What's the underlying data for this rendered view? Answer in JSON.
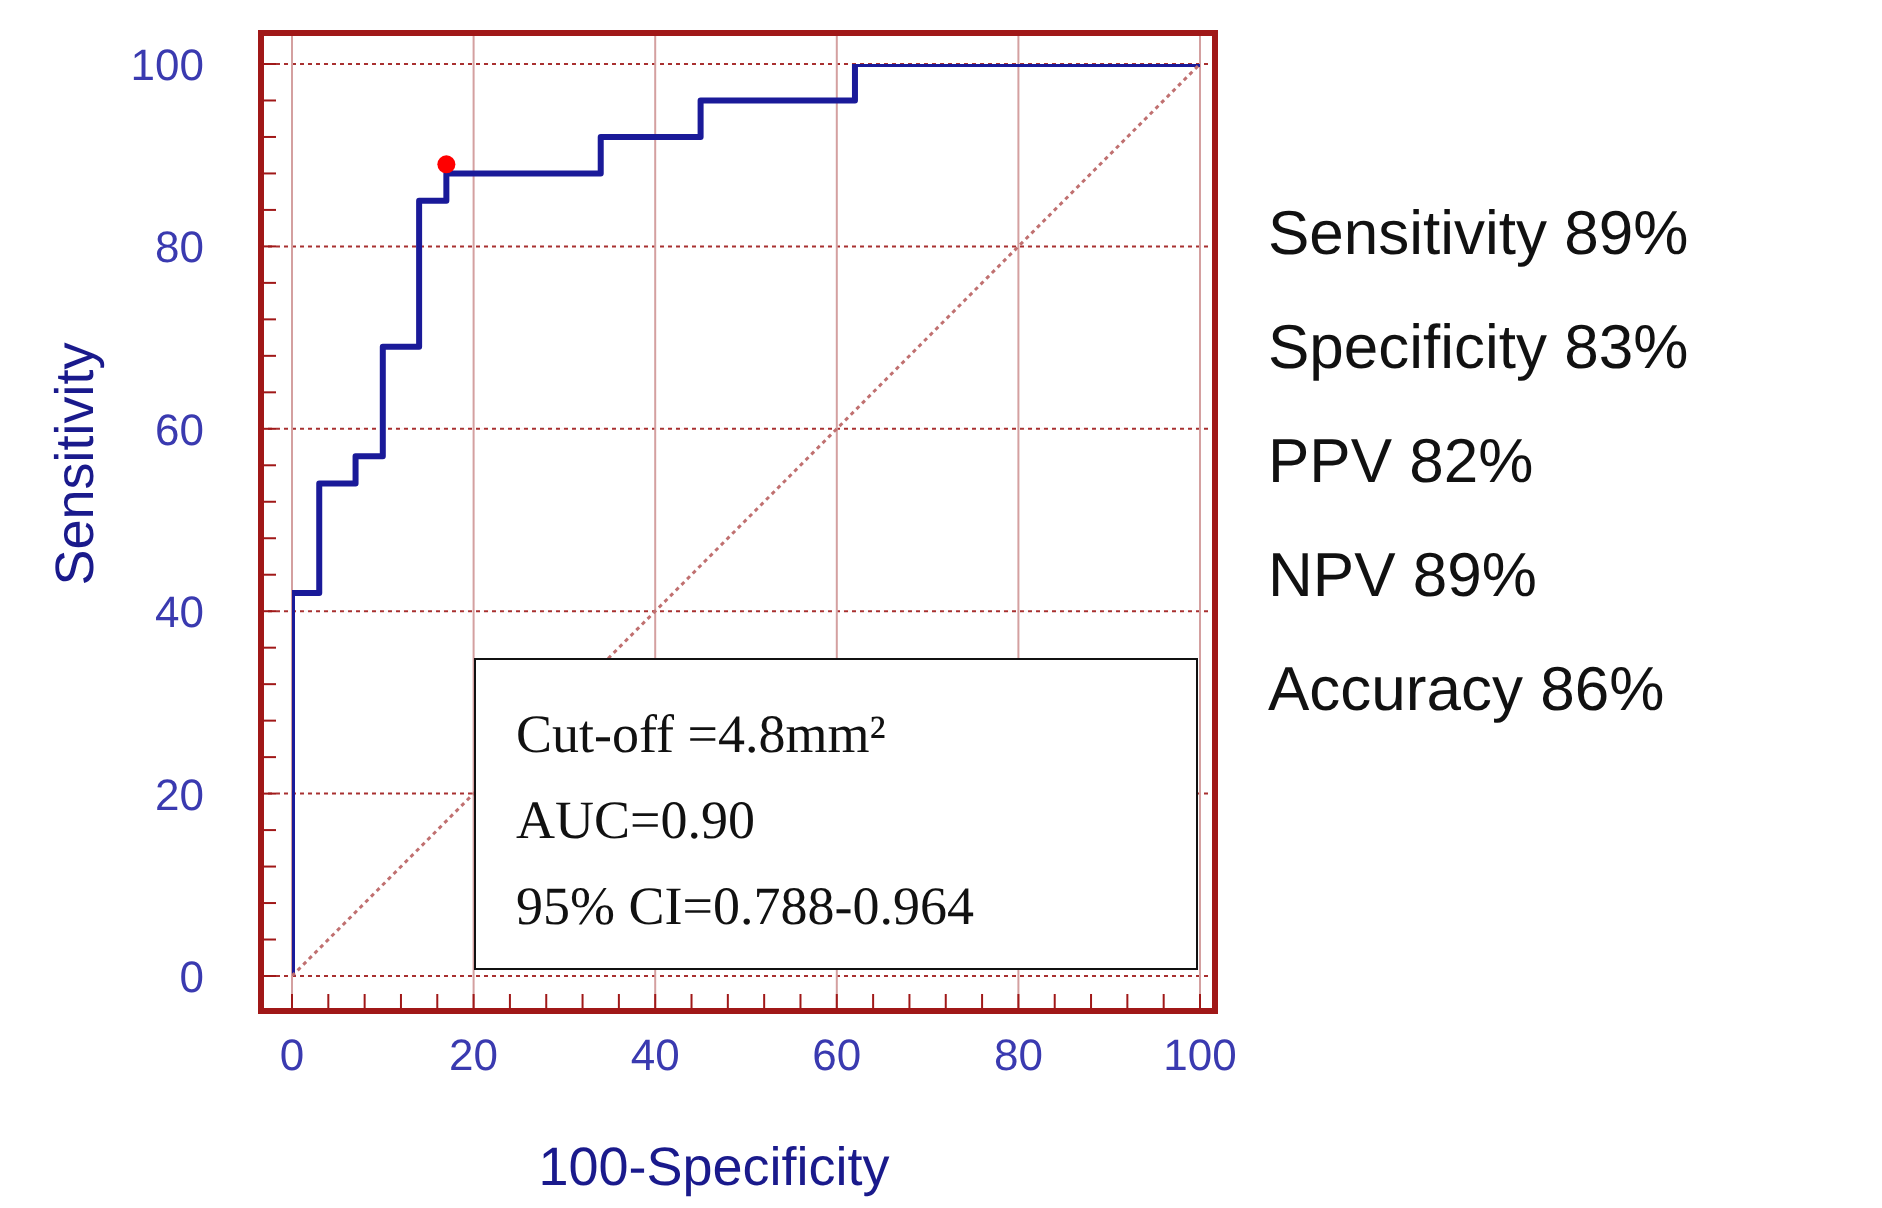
{
  "chart_data": {
    "type": "step",
    "xlabel": "100-Specificity",
    "ylabel": "Sensitivity",
    "series": [
      {
        "color": "#1a1a99",
        "x": [
          0,
          3,
          7,
          10,
          14,
          17,
          34,
          45,
          62,
          100
        ],
        "values": [
          0,
          42,
          54,
          57,
          69,
          85,
          88,
          92,
          96,
          100
        ]
      },
      {
        "type": "line",
        "color": "#c07070",
        "line_style": "dotted",
        "x": [
          0,
          100
        ],
        "values": [
          0,
          100
        ]
      },
      {
        "type": "scatter",
        "color": "#ff0000",
        "marker": "circle",
        "x": [
          17
        ],
        "values": [
          89
        ]
      }
    ],
    "xlim": [
      0,
      100
    ],
    "ylim": [
      0,
      100
    ],
    "xticks": [
      0,
      {
        "value": 4,
        "label": null
      },
      {
        "value": 8,
        "label": null
      },
      {
        "value": 12,
        "label": null
      },
      {
        "value": 16,
        "label": null
      },
      20,
      {
        "value": 24,
        "label": null
      },
      {
        "value": 28,
        "label": null
      },
      {
        "value": 32,
        "label": null
      },
      {
        "value": 36,
        "label": null
      },
      40,
      {
        "value": 44,
        "label": null
      },
      {
        "value": 48,
        "label": null
      },
      {
        "value": 52,
        "label": null
      },
      {
        "value": 56,
        "label": null
      },
      60,
      {
        "value": 64,
        "label": null
      },
      {
        "value": 68,
        "label": null
      },
      {
        "value": 72,
        "label": null
      },
      {
        "value": 76,
        "label": null
      },
      80,
      {
        "value": 84,
        "label": null
      },
      {
        "value": 88,
        "label": null
      },
      {
        "value": 92,
        "label": null
      },
      {
        "value": 96,
        "label": null
      },
      100
    ],
    "yticks": [
      0,
      {
        "value": 4,
        "label": null
      },
      {
        "value": 8,
        "label": null
      },
      {
        "value": 12,
        "label": null
      },
      {
        "value": 16,
        "label": null
      },
      20,
      {
        "value": 24,
        "label": null
      },
      {
        "value": 28,
        "label": null
      },
      {
        "value": 32,
        "label": null
      },
      {
        "value": 36,
        "label": null
      },
      40,
      {
        "value": 44,
        "label": null
      },
      {
        "value": 48,
        "label": null
      },
      {
        "value": 52,
        "label": null
      },
      {
        "value": 56,
        "label": null
      },
      60,
      {
        "value": 64,
        "label": null
      },
      {
        "value": 68,
        "label": null
      },
      {
        "value": 72,
        "label": null
      },
      {
        "value": 76,
        "label": null
      },
      80,
      {
        "value": 84,
        "label": null
      },
      {
        "value": 88,
        "label": null
      },
      {
        "value": 92,
        "label": null
      },
      {
        "value": 96,
        "label": null
      },
      100
    ],
    "grid": true,
    "annotations": [
      "Sensitivity 89%",
      "Specificity 83%",
      "PPV 82%",
      "NPV 89%",
      "Accuracy 86%",
      "Cut-off =4.8mm²",
      "AUC=0.90",
      "95% CI=0.788-0.964"
    ]
  }
}
